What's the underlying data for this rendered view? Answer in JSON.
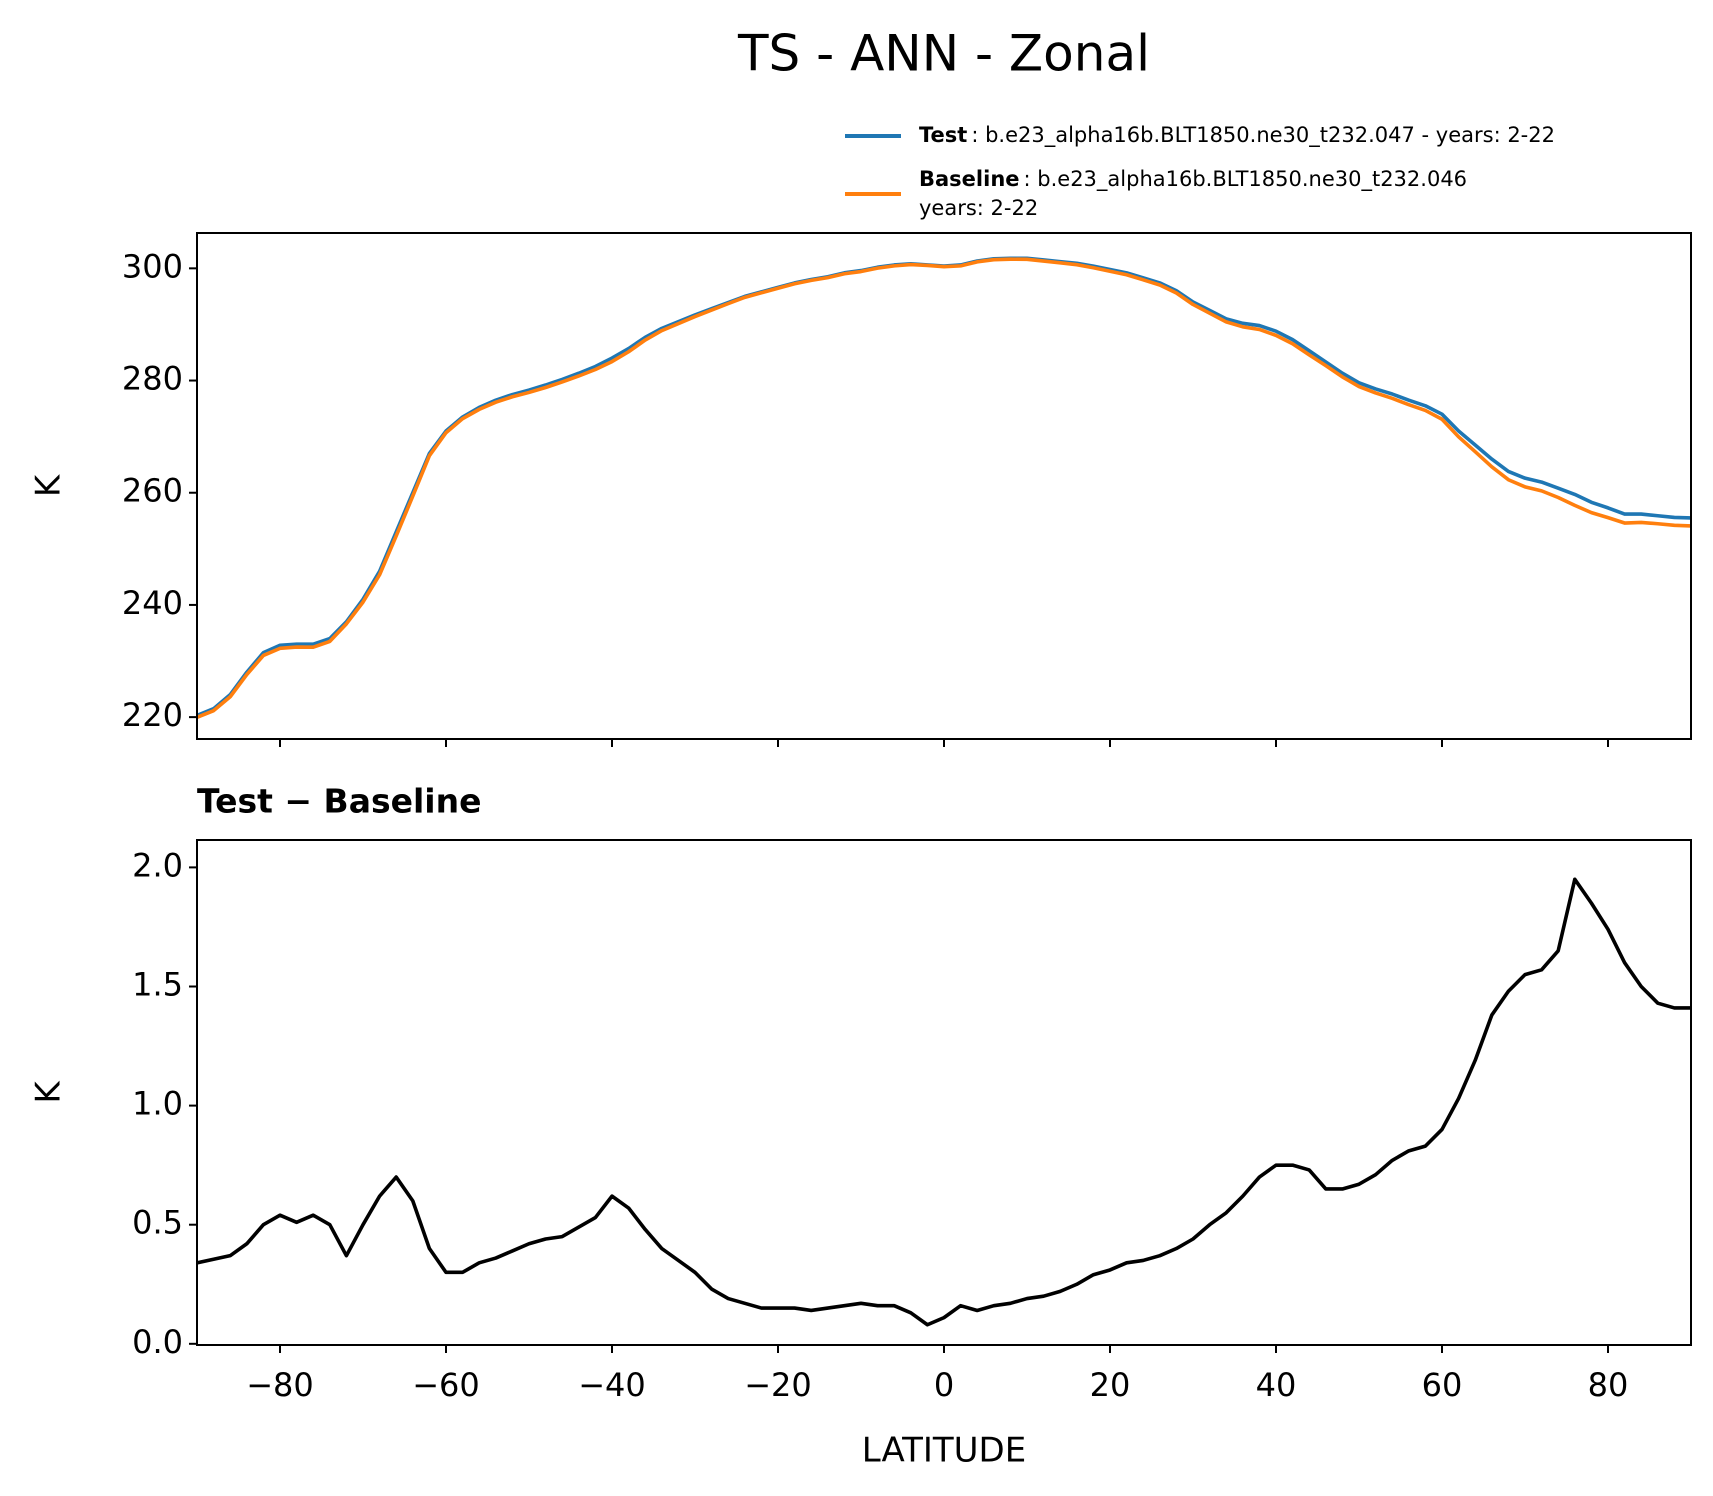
{
  "chart_data": [
    {
      "type": "line",
      "title": "TS - ANN - Zonal",
      "ylabel": "K",
      "x": [
        -90,
        -88,
        -86,
        -84,
        -82,
        -80,
        -78,
        -76,
        -74,
        -72,
        -70,
        -68,
        -66,
        -64,
        -62,
        -60,
        -58,
        -56,
        -54,
        -52,
        -50,
        -48,
        -46,
        -44,
        -42,
        -40,
        -38,
        -36,
        -34,
        -32,
        -30,
        -28,
        -26,
        -24,
        -22,
        -20,
        -18,
        -16,
        -14,
        -12,
        -10,
        -8,
        -6,
        -4,
        -2,
        0,
        2,
        4,
        6,
        8,
        10,
        12,
        14,
        16,
        18,
        20,
        22,
        24,
        26,
        28,
        30,
        32,
        34,
        36,
        38,
        40,
        42,
        44,
        46,
        48,
        50,
        52,
        54,
        56,
        58,
        60,
        62,
        64,
        66,
        68,
        70,
        72,
        74,
        76,
        78,
        80,
        82,
        84,
        86,
        88,
        90
      ],
      "series": [
        {
          "name": "Test",
          "description": [
            ": b.e23_alpha16b.BLT1850.ne30_t232.047 - years: 2-22"
          ],
          "color": "#1f77b4",
          "values": [
            220.3,
            221.5,
            224,
            228,
            231.5,
            232.8,
            233,
            233,
            234,
            237,
            241,
            246,
            253,
            260,
            267,
            271,
            273.5,
            275.2,
            276.5,
            277.5,
            278.3,
            279.2,
            280.2,
            281.3,
            282.5,
            284,
            285.7,
            287.7,
            289.3,
            290.5,
            291.7,
            292.8,
            293.9,
            295,
            295.8,
            296.6,
            297.4,
            298,
            298.5,
            299.2,
            299.6,
            300.2,
            300.6,
            300.8,
            300.6,
            300.4,
            300.6,
            301.3,
            301.7,
            301.8,
            301.8,
            301.5,
            301.2,
            300.9,
            300.4,
            299.8,
            299.2,
            298.3,
            297.4,
            296,
            294,
            292.5,
            291,
            290.2,
            289.8,
            288.8,
            287.3,
            285.3,
            283.3,
            281.3,
            279.6,
            278.5,
            277.6,
            276.5,
            275.5,
            274,
            271,
            268.5,
            266,
            263.8,
            262.6,
            261.9,
            260.8,
            259.7,
            258.3,
            257.3,
            256.2,
            256.2,
            255.9,
            255.6,
            255.5
          ]
        },
        {
          "name": "Baseline",
          "description": [
            ": b.e23_alpha16b.BLT1850.ne30_t232.046",
            "years: 2-22"
          ],
          "color": "#ff7f0e",
          "values": [
            219.96,
            221.15,
            223.63,
            227.58,
            231.0,
            232.26,
            232.49,
            232.46,
            233.5,
            236.63,
            240.5,
            245.38,
            252.3,
            259.4,
            266.6,
            270.7,
            273.2,
            274.86,
            276.14,
            277.11,
            277.88,
            278.76,
            279.75,
            280.81,
            281.97,
            283.38,
            285.13,
            287.22,
            288.9,
            290.15,
            291.4,
            292.57,
            293.71,
            294.83,
            295.65,
            296.45,
            297.25,
            297.86,
            298.35,
            299.04,
            299.43,
            300.04,
            300.44,
            300.67,
            300.52,
            300.29,
            300.44,
            301.16,
            301.54,
            301.63,
            301.61,
            301.3,
            300.98,
            300.65,
            300.11,
            299.49,
            298.86,
            297.95,
            297.03,
            295.6,
            293.56,
            292.0,
            290.45,
            289.58,
            289.1,
            288.05,
            286.55,
            284.57,
            282.65,
            280.65,
            278.93,
            277.79,
            276.83,
            275.69,
            274.67,
            273.1,
            269.97,
            267.31,
            264.62,
            262.32,
            261.05,
            260.33,
            259.15,
            257.75,
            256.45,
            255.56,
            254.6,
            254.7,
            254.47,
            254.19,
            254.09
          ]
        }
      ],
      "xlim": [
        -90,
        90
      ],
      "xticks": [
        {
          "value": -80,
          "label": "−80"
        },
        {
          "value": -60,
          "label": "−60"
        },
        {
          "value": -40,
          "label": "−40"
        },
        {
          "value": -20,
          "label": "−20"
        },
        0,
        20,
        40,
        60,
        80
      ],
      "ylim": [
        216.1,
        306.3
      ],
      "yticks": [
        220,
        240,
        260,
        280,
        300
      ],
      "legend": "upper right"
    },
    {
      "type": "line",
      "title": "Test − Baseline",
      "xlabel": "LATITUDE",
      "ylabel": "K",
      "color": "#000000",
      "x": [
        -90,
        -88,
        -86,
        -84,
        -82,
        -80,
        -78,
        -76,
        -74,
        -72,
        -70,
        -68,
        -66,
        -64,
        -62,
        -60,
        -58,
        -56,
        -54,
        -52,
        -50,
        -48,
        -46,
        -44,
        -42,
        -40,
        -38,
        -36,
        -34,
        -32,
        -30,
        -28,
        -26,
        -24,
        -22,
        -20,
        -18,
        -16,
        -14,
        -12,
        -10,
        -8,
        -6,
        -4,
        -2,
        0,
        2,
        4,
        6,
        8,
        10,
        12,
        14,
        16,
        18,
        20,
        22,
        24,
        26,
        28,
        30,
        32,
        34,
        36,
        38,
        40,
        42,
        44,
        46,
        48,
        50,
        52,
        54,
        56,
        58,
        60,
        62,
        64,
        66,
        68,
        70,
        72,
        74,
        76,
        78,
        80,
        82,
        84,
        86,
        88,
        90
      ],
      "values": [
        0.34,
        0.355,
        0.37,
        0.42,
        0.5,
        0.54,
        0.51,
        0.54,
        0.5,
        0.37,
        0.5,
        0.62,
        0.7,
        0.6,
        0.4,
        0.3,
        0.3,
        0.34,
        0.36,
        0.39,
        0.42,
        0.44,
        0.45,
        0.49,
        0.53,
        0.62,
        0.57,
        0.48,
        0.4,
        0.35,
        0.3,
        0.23,
        0.19,
        0.17,
        0.15,
        0.15,
        0.15,
        0.14,
        0.15,
        0.16,
        0.17,
        0.16,
        0.16,
        0.13,
        0.08,
        0.11,
        0.16,
        0.14,
        0.16,
        0.17,
        0.19,
        0.2,
        0.22,
        0.25,
        0.29,
        0.31,
        0.34,
        0.35,
        0.37,
        0.4,
        0.44,
        0.5,
        0.55,
        0.62,
        0.7,
        0.75,
        0.75,
        0.73,
        0.65,
        0.65,
        0.67,
        0.71,
        0.77,
        0.81,
        0.83,
        0.9,
        1.03,
        1.19,
        1.38,
        1.48,
        1.55,
        1.57,
        1.65,
        1.95,
        1.85,
        1.74,
        1.6,
        1.5,
        1.43,
        1.41,
        1.41
      ],
      "xlim": [
        -90,
        90
      ],
      "xticks": [
        {
          "value": -80,
          "label": "−80"
        },
        {
          "value": -60,
          "label": "−60"
        },
        {
          "value": -40,
          "label": "−40"
        },
        {
          "value": -20,
          "label": "−20"
        },
        0,
        20,
        40,
        60,
        80
      ],
      "ylim": [
        -0.005,
        2.115
      ],
      "yticks": [
        {
          "value": 0,
          "label": "0.0"
        },
        0.5,
        {
          "value": 1,
          "label": "1.0"
        },
        1.5,
        {
          "value": 2,
          "label": "2.0"
        }
      ]
    }
  ]
}
